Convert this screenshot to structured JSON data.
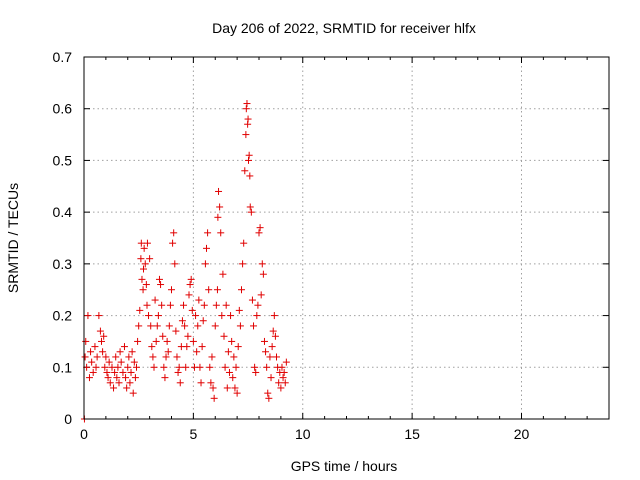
{
  "chart_data": {
    "type": "scatter",
    "title": "Day 206 of 2022, SRMTID for receiver hlfx",
    "xlabel": "GPS time / hours",
    "ylabel": "SRMTID / TECUs",
    "xlim": [
      0,
      24
    ],
    "ylim": [
      0,
      0.7
    ],
    "xticks": [
      0,
      5,
      10,
      15,
      20
    ],
    "xtick_labels": [
      "0",
      "5",
      "10",
      "15",
      "20"
    ],
    "yticks": [
      0,
      0.1,
      0.2,
      0.3,
      0.4,
      0.5,
      0.6,
      0.7
    ],
    "ytick_labels": [
      "0",
      "0.1",
      "0.2",
      "0.3",
      "0.4",
      "0.5",
      "0.6",
      "0.7"
    ],
    "grid": true,
    "marker": "+",
    "color": "#e00000",
    "series": [
      {
        "name": "SRMTID",
        "x": [
          0.02,
          0.05,
          0.08,
          0.12,
          0.18,
          0.25,
          0.3,
          0.35,
          0.42,
          0.5,
          0.55,
          0.6,
          0.68,
          0.75,
          0.8,
          0.85,
          0.9,
          0.95,
          1.0,
          1.05,
          1.1,
          1.15,
          1.2,
          1.28,
          1.35,
          1.4,
          1.45,
          1.5,
          1.55,
          1.6,
          1.65,
          1.7,
          1.78,
          1.85,
          1.9,
          1.95,
          2.0,
          2.05,
          2.1,
          2.15,
          2.2,
          2.25,
          2.3,
          2.35,
          2.4,
          2.45,
          2.5,
          2.55,
          2.6,
          2.62,
          2.65,
          2.7,
          2.72,
          2.75,
          2.8,
          2.85,
          2.88,
          2.9,
          2.95,
          3.0,
          3.05,
          3.1,
          3.15,
          3.2,
          3.25,
          3.3,
          3.35,
          3.4,
          3.45,
          3.5,
          3.55,
          3.6,
          3.65,
          3.7,
          3.75,
          3.8,
          3.85,
          3.9,
          3.95,
          4.0,
          4.05,
          4.1,
          4.15,
          4.2,
          4.25,
          4.3,
          4.35,
          4.4,
          4.45,
          4.5,
          4.55,
          4.6,
          4.65,
          4.7,
          4.75,
          4.8,
          4.85,
          4.9,
          4.95,
          5.0,
          5.05,
          5.1,
          5.15,
          5.2,
          5.25,
          5.3,
          5.35,
          5.4,
          5.45,
          5.5,
          5.55,
          5.6,
          5.65,
          5.7,
          5.75,
          5.8,
          5.85,
          5.9,
          5.95,
          6.0,
          6.05,
          6.1,
          6.12,
          6.15,
          6.2,
          6.25,
          6.3,
          6.35,
          6.4,
          6.45,
          6.5,
          6.55,
          6.6,
          6.65,
          6.7,
          6.75,
          6.8,
          6.85,
          6.9,
          6.95,
          7.0,
          7.05,
          7.1,
          7.15,
          7.2,
          7.25,
          7.3,
          7.35,
          7.4,
          7.42,
          7.45,
          7.48,
          7.5,
          7.52,
          7.55,
          7.58,
          7.6,
          7.65,
          7.7,
          7.75,
          7.8,
          7.85,
          7.9,
          7.95,
          8.0,
          8.05,
          8.1,
          8.15,
          8.2,
          8.25,
          8.3,
          8.35,
          8.4,
          8.45,
          8.5,
          8.55,
          8.6,
          8.65,
          8.7,
          8.75,
          8.8,
          8.85,
          8.9,
          8.95,
          9.0,
          9.05,
          9.1,
          9.15,
          9.2,
          9.25
        ],
        "y": [
          0.0,
          0.12,
          0.15,
          0.1,
          0.2,
          0.08,
          0.13,
          0.11,
          0.09,
          0.14,
          0.1,
          0.12,
          0.2,
          0.17,
          0.15,
          0.13,
          0.16,
          0.1,
          0.12,
          0.09,
          0.08,
          0.11,
          0.07,
          0.1,
          0.06,
          0.09,
          0.12,
          0.08,
          0.1,
          0.07,
          0.13,
          0.11,
          0.09,
          0.14,
          0.08,
          0.06,
          0.1,
          0.12,
          0.07,
          0.09,
          0.13,
          0.05,
          0.11,
          0.08,
          0.1,
          0.15,
          0.18,
          0.21,
          0.31,
          0.34,
          0.27,
          0.25,
          0.29,
          0.33,
          0.3,
          0.26,
          0.22,
          0.34,
          0.2,
          0.31,
          0.18,
          0.14,
          0.12,
          0.1,
          0.23,
          0.15,
          0.18,
          0.2,
          0.27,
          0.26,
          0.22,
          0.16,
          0.1,
          0.08,
          0.12,
          0.15,
          0.13,
          0.18,
          0.22,
          0.25,
          0.34,
          0.36,
          0.3,
          0.17,
          0.12,
          0.09,
          0.1,
          0.07,
          0.14,
          0.19,
          0.22,
          0.18,
          0.1,
          0.14,
          0.16,
          0.24,
          0.26,
          0.27,
          0.21,
          0.15,
          0.1,
          0.2,
          0.13,
          0.18,
          0.23,
          0.1,
          0.07,
          0.14,
          0.19,
          0.22,
          0.3,
          0.33,
          0.36,
          0.25,
          0.1,
          0.07,
          0.12,
          0.06,
          0.04,
          0.18,
          0.22,
          0.25,
          0.39,
          0.44,
          0.41,
          0.36,
          0.2,
          0.28,
          0.16,
          0.1,
          0.22,
          0.06,
          0.13,
          0.09,
          0.2,
          0.15,
          0.08,
          0.12,
          0.06,
          0.1,
          0.05,
          0.14,
          0.21,
          0.18,
          0.25,
          0.3,
          0.34,
          0.48,
          0.55,
          0.6,
          0.61,
          0.57,
          0.58,
          0.5,
          0.51,
          0.47,
          0.41,
          0.4,
          0.23,
          0.18,
          0.1,
          0.09,
          0.2,
          0.22,
          0.36,
          0.37,
          0.24,
          0.3,
          0.28,
          0.15,
          0.13,
          0.1,
          0.05,
          0.04,
          0.12,
          0.08,
          0.14,
          0.17,
          0.2,
          0.16,
          0.12,
          0.1,
          0.07,
          0.09,
          0.06,
          0.1,
          0.08,
          0.09,
          0.07,
          0.11
        ]
      }
    ]
  }
}
